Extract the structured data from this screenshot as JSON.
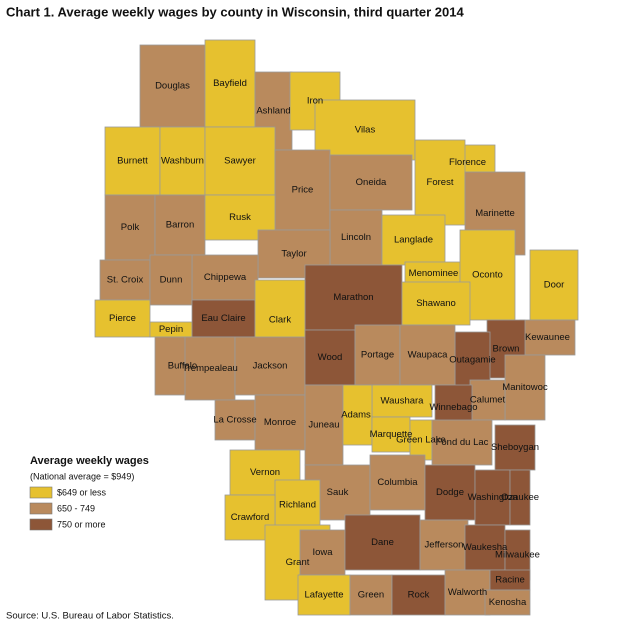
{
  "title": "Chart 1. Average weekly wages by county in Wisconsin, third quarter 2014",
  "legend": {
    "title": "Average weekly wages",
    "note": "(National average = $949)",
    "items": [
      {
        "label": "$649 or less",
        "color": "#e6c12f"
      },
      {
        "label": "650 - 749",
        "color": "#b98a5d"
      },
      {
        "label": "750 or more",
        "color": "#8d5638"
      }
    ]
  },
  "counties": [
    {
      "name": "Douglas",
      "group": 1
    },
    {
      "name": "Bayfield",
      "group": 0
    },
    {
      "name": "Ashland",
      "group": 1
    },
    {
      "name": "Iron",
      "group": 0
    },
    {
      "name": "Vilas",
      "group": 0
    },
    {
      "name": "Florence",
      "group": 0
    },
    {
      "name": "Forest",
      "group": 0
    },
    {
      "name": "Burnett",
      "group": 0
    },
    {
      "name": "Washburn",
      "group": 0
    },
    {
      "name": "Sawyer",
      "group": 0
    },
    {
      "name": "Price",
      "group": 1
    },
    {
      "name": "Oneida",
      "group": 1
    },
    {
      "name": "Marinette",
      "group": 1
    },
    {
      "name": "Polk",
      "group": 1
    },
    {
      "name": "Barron",
      "group": 1
    },
    {
      "name": "Rusk",
      "group": 0
    },
    {
      "name": "Lincoln",
      "group": 1
    },
    {
      "name": "Langlade",
      "group": 0
    },
    {
      "name": "Taylor",
      "group": 1
    },
    {
      "name": "Chippewa",
      "group": 1
    },
    {
      "name": "St. Croix",
      "group": 1
    },
    {
      "name": "Dunn",
      "group": 1
    },
    {
      "name": "Menominee",
      "group": 0
    },
    {
      "name": "Oconto",
      "group": 0
    },
    {
      "name": "Marathon",
      "group": 2
    },
    {
      "name": "Shawano",
      "group": 0
    },
    {
      "name": "Door",
      "group": 0
    },
    {
      "name": "Pierce",
      "group": 0
    },
    {
      "name": "Pepin",
      "group": 0
    },
    {
      "name": "Eau Claire",
      "group": 2
    },
    {
      "name": "Clark",
      "group": 0
    },
    {
      "name": "Kewaunee",
      "group": 1
    },
    {
      "name": "Brown",
      "group": 2
    },
    {
      "name": "Outagamie",
      "group": 2
    },
    {
      "name": "Buffalo",
      "group": 1
    },
    {
      "name": "Trempealeau",
      "group": 1
    },
    {
      "name": "Jackson",
      "group": 1
    },
    {
      "name": "Wood",
      "group": 2
    },
    {
      "name": "Portage",
      "group": 1
    },
    {
      "name": "Waupaca",
      "group": 1
    },
    {
      "name": "Manitowoc",
      "group": 1
    },
    {
      "name": "Calumet",
      "group": 1
    },
    {
      "name": "Winnebago",
      "group": 2
    },
    {
      "name": "Waushara",
      "group": 0
    },
    {
      "name": "Adams",
      "group": 0
    },
    {
      "name": "La Crosse",
      "group": 1
    },
    {
      "name": "Monroe",
      "group": 1
    },
    {
      "name": "Juneau",
      "group": 1
    },
    {
      "name": "Marquette",
      "group": 0
    },
    {
      "name": "Green Lake",
      "group": 0
    },
    {
      "name": "Fond du Lac",
      "group": 1
    },
    {
      "name": "Sheboygan",
      "group": 2
    },
    {
      "name": "Vernon",
      "group": 0
    },
    {
      "name": "Sauk",
      "group": 1
    },
    {
      "name": "Columbia",
      "group": 1
    },
    {
      "name": "Dodge",
      "group": 2
    },
    {
      "name": "Washington",
      "group": 2
    },
    {
      "name": "Ozaukee",
      "group": 2
    },
    {
      "name": "Richland",
      "group": 0
    },
    {
      "name": "Crawford",
      "group": 0
    },
    {
      "name": "Grant",
      "group": 0
    },
    {
      "name": "Iowa",
      "group": 1
    },
    {
      "name": "Dane",
      "group": 2
    },
    {
      "name": "Jefferson",
      "group": 1
    },
    {
      "name": "Waukesha",
      "group": 2
    },
    {
      "name": "Milwaukee",
      "group": 2
    },
    {
      "name": "Lafayette",
      "group": 0
    },
    {
      "name": "Green",
      "group": 1
    },
    {
      "name": "Rock",
      "group": 2
    },
    {
      "name": "Walworth",
      "group": 1
    },
    {
      "name": "Racine",
      "group": 2
    },
    {
      "name": "Kenosha",
      "group": 1
    }
  ],
  "source": "Source: U.S. Bureau of Labor Statistics."
}
